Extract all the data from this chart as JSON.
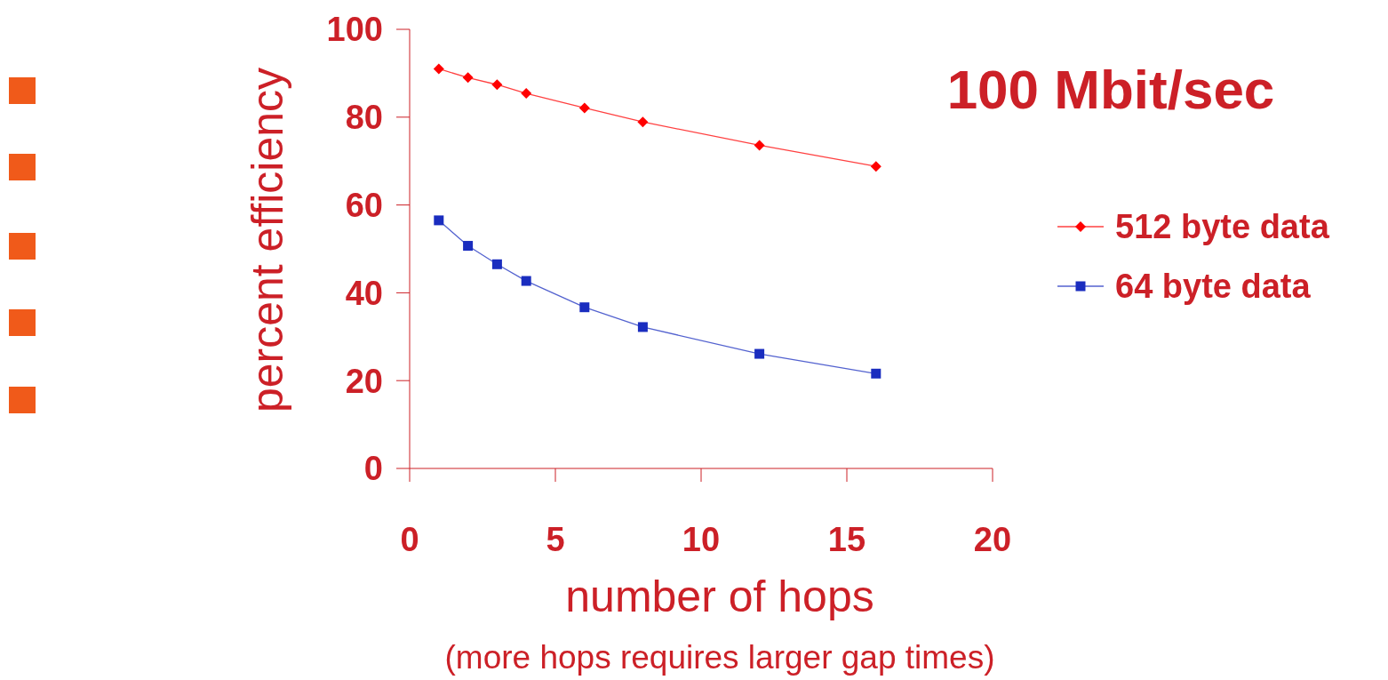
{
  "chart_data": {
    "type": "line",
    "title": "100 Mbit/sec",
    "xlabel": "number of hops",
    "ylabel": "percent efficiency",
    "annotations": [
      "(more hops requires larger gap times)"
    ],
    "x": [
      1,
      2,
      3,
      4,
      6,
      8,
      12,
      16
    ],
    "series": [
      {
        "name": "512 byte data",
        "color": "#ff0000",
        "marker": "diamond",
        "values": [
          91.0,
          89.0,
          87.4,
          85.4,
          82.1,
          78.9,
          73.6,
          68.8
        ]
      },
      {
        "name": "64 byte data",
        "color": "#1a2dbf",
        "marker": "square",
        "values": [
          56.5,
          50.7,
          46.5,
          42.7,
          36.7,
          32.2,
          26.1,
          21.6
        ]
      }
    ],
    "xlim": [
      0,
      20
    ],
    "xticks": [
      0,
      5,
      10,
      15,
      20
    ],
    "ylim": [
      0,
      100
    ],
    "yticks": [
      0,
      20,
      40,
      60,
      80,
      100
    ],
    "grid": false,
    "legend": "right",
    "line_style": "solid"
  }
}
